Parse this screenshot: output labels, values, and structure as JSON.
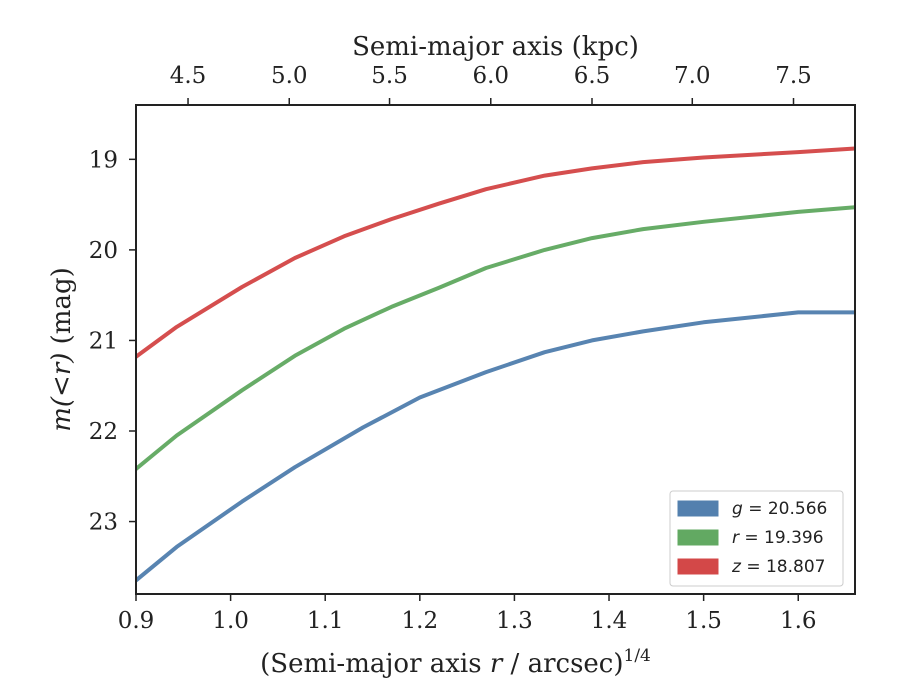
{
  "chart_data": {
    "type": "line",
    "x_bottom": {
      "label_main": "(Semi-major axis ",
      "label_var": "r",
      "label_tail": " / arcsec)",
      "label_sup": "1/4",
      "range": [
        0.9,
        1.66
      ],
      "ticks": [
        0.9,
        1.0,
        1.1,
        1.2,
        1.3,
        1.4,
        1.5,
        1.6
      ],
      "tick_labels": [
        "0.9",
        "1.0",
        "1.1",
        "1.2",
        "1.3",
        "1.4",
        "1.5",
        "1.6"
      ]
    },
    "x_top": {
      "label": "Semi-major axis (kpc)",
      "ticks": [
        4.5,
        5.0,
        5.5,
        6.0,
        6.5,
        7.0,
        7.5
      ],
      "tick_labels": [
        "4.5",
        "5.0",
        "5.5",
        "6.0",
        "6.5",
        "7.0",
        "7.5"
      ],
      "tick_positions_bottom_units": [
        0.955,
        1.062,
        1.168,
        1.275,
        1.382,
        1.488,
        1.595
      ]
    },
    "y": {
      "label_var": "m(<r)",
      "label_unit": " (mag)",
      "range": [
        23.8,
        18.4
      ],
      "inverted": true,
      "ticks": [
        19,
        20,
        21,
        22,
        23
      ],
      "tick_labels": [
        "19",
        "20",
        "21",
        "22",
        "23"
      ]
    },
    "series": [
      {
        "name": "g",
        "legend_var": "g",
        "legend_value": "= 20.566",
        "color": "#4a7aaa",
        "x": [
          0.9,
          0.943,
          1.012,
          1.068,
          1.14,
          1.2,
          1.27,
          1.332,
          1.382,
          1.436,
          1.5,
          1.6,
          1.66
        ],
        "y": [
          23.65,
          23.28,
          22.78,
          22.4,
          21.96,
          21.63,
          21.35,
          21.13,
          21.0,
          20.9,
          20.8,
          20.69,
          20.69
        ]
      },
      {
        "name": "r",
        "legend_var": "r",
        "legend_value": "= 19.396",
        "color": "#5aa55a",
        "x": [
          0.9,
          0.943,
          1.012,
          1.068,
          1.12,
          1.17,
          1.22,
          1.27,
          1.332,
          1.382,
          1.436,
          1.5,
          1.6,
          1.66
        ],
        "y": [
          22.42,
          22.05,
          21.55,
          21.17,
          20.87,
          20.63,
          20.42,
          20.2,
          20.0,
          19.87,
          19.77,
          19.69,
          19.58,
          19.53
        ]
      },
      {
        "name": "z",
        "legend_var": "z",
        "legend_value": "= 18.807",
        "color": "#d13f3f",
        "x": [
          0.9,
          0.943,
          1.012,
          1.068,
          1.12,
          1.17,
          1.22,
          1.27,
          1.332,
          1.382,
          1.436,
          1.5,
          1.6,
          1.66
        ],
        "y": [
          21.18,
          20.85,
          20.41,
          20.09,
          19.85,
          19.66,
          19.49,
          19.33,
          19.18,
          19.1,
          19.03,
          18.98,
          18.92,
          18.88
        ]
      }
    ],
    "legend_position": "bottom-right"
  }
}
